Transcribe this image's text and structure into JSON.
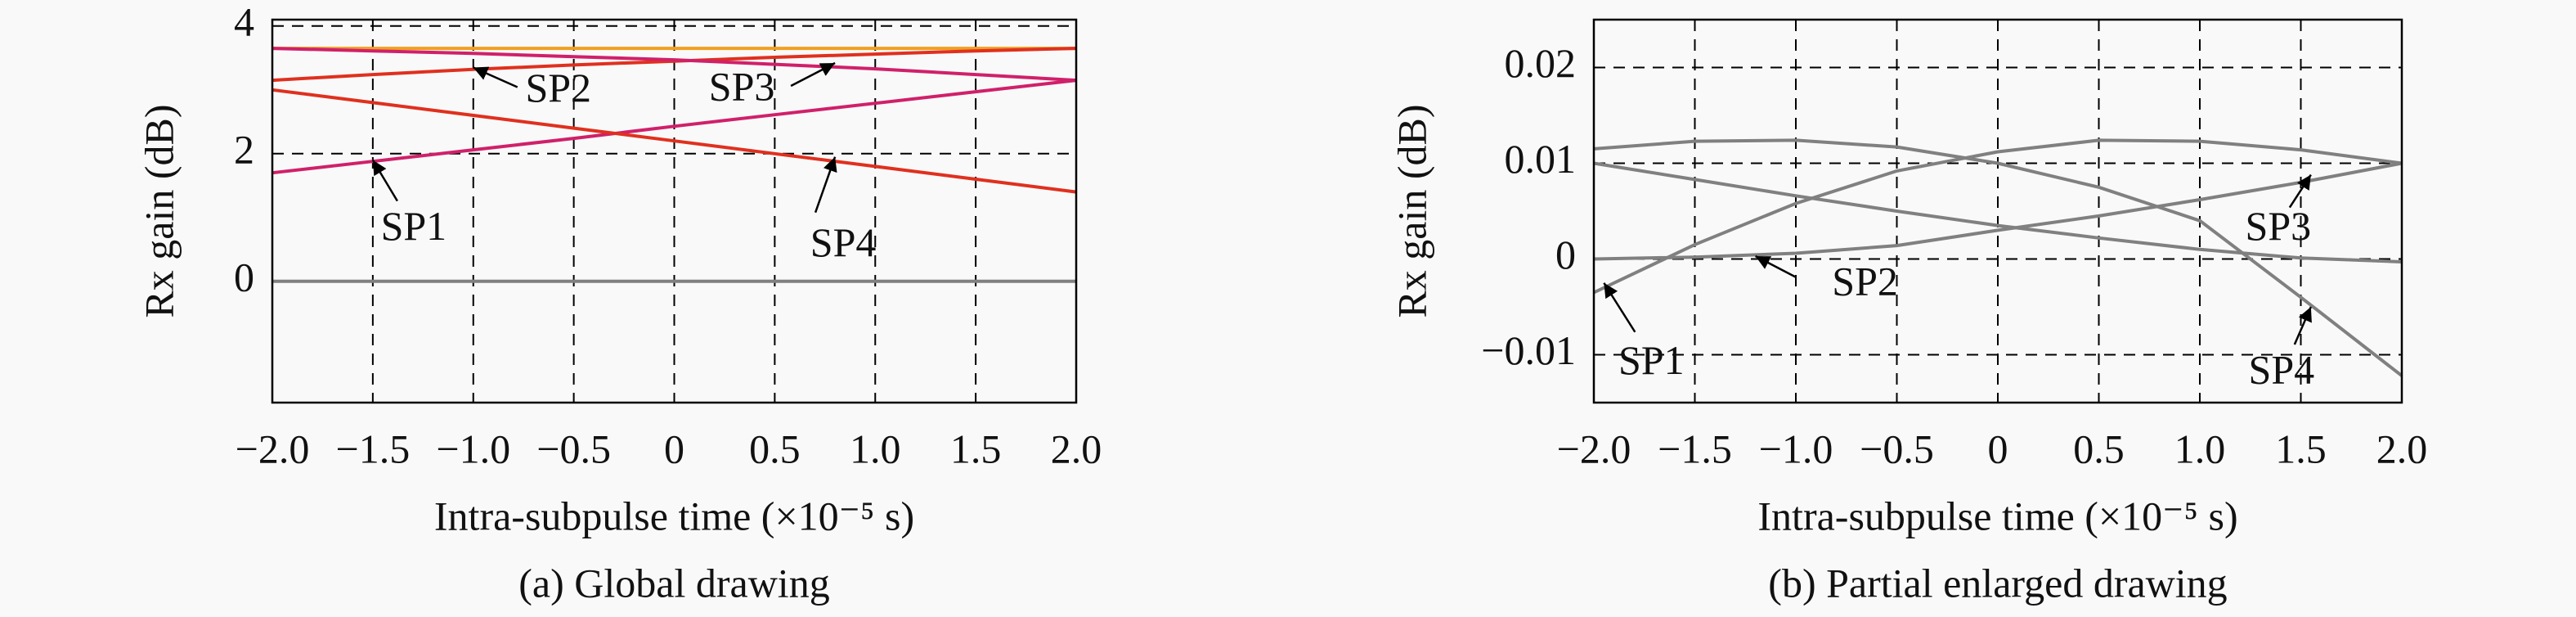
{
  "chart_data": [
    {
      "type": "line",
      "caption": "(a) Global drawing",
      "x_label": "Intra-subpulse time (×10⁻⁵ s)",
      "y_label": "Rx gain (dB)",
      "x": [
        -2,
        -1.5,
        -1,
        -0.5,
        0,
        0.5,
        1,
        1.5,
        2
      ],
      "xlim": [
        -2,
        2
      ],
      "xticks": [
        {
          "value": -2,
          "label": "−2.0"
        },
        {
          "value": -1.5,
          "label": "−1.5"
        },
        {
          "value": -1,
          "label": "−1.0"
        },
        {
          "value": -0.5,
          "label": "−0.5"
        },
        0,
        {
          "value": 0.5,
          "label": "0.5"
        },
        {
          "value": 1,
          "label": "1.0"
        },
        {
          "value": 1.5,
          "label": "1.5"
        },
        {
          "value": 2,
          "label": "2.0"
        }
      ],
      "ylim": [
        -1.9,
        4.1
      ],
      "yticks": [
        0,
        2,
        4
      ],
      "grid": true,
      "series": [
        {
          "color": "#f0a020",
          "values": [
            3.65,
            3.65,
            3.65,
            3.65,
            3.65,
            3.65,
            3.65,
            3.65,
            3.65
          ]
        },
        {
          "color": "#d0206a",
          "values": [
            1.7,
            1.88,
            2.06,
            2.24,
            2.43,
            2.61,
            2.79,
            2.97,
            3.15
          ]
        },
        {
          "color": "#e0301e",
          "values": [
            3.15,
            3.24,
            3.32,
            3.39,
            3.45,
            3.51,
            3.56,
            3.61,
            3.65
          ]
        },
        {
          "color": "#d0206a",
          "values": [
            3.65,
            3.61,
            3.57,
            3.52,
            3.47,
            3.4,
            3.33,
            3.24,
            3.15
          ]
        },
        {
          "color": "#e0301e",
          "values": [
            3.0,
            2.8,
            2.6,
            2.4,
            2.2,
            2.0,
            1.8,
            1.6,
            1.4
          ]
        },
        {
          "color": "#808080",
          "values": [
            0,
            0,
            0,
            0,
            0,
            0,
            0,
            0,
            0
          ]
        }
      ],
      "annotations": [
        {
          "text": "SP1",
          "x": -1.5,
          "y": 1.9
        },
        {
          "text": "SP2",
          "x": -1.0,
          "y": 3.35
        },
        {
          "text": "SP3",
          "x": 0.8,
          "y": 3.42
        },
        {
          "text": "SP4",
          "x": 0.8,
          "y": 1.95
        }
      ]
    },
    {
      "type": "line",
      "caption": "(b) Partial enlarged drawing",
      "x_label": "Intra-subpulse time (×10⁻⁵ s)",
      "y_label": "Rx gain (dB)",
      "x": [
        -2,
        -1.5,
        -1,
        -0.5,
        0,
        0.5,
        1,
        1.5,
        2
      ],
      "xlim": [
        -2,
        2
      ],
      "xticks": [
        {
          "value": -2,
          "label": "−2.0"
        },
        {
          "value": -1.5,
          "label": "−1.5"
        },
        {
          "value": -1,
          "label": "−1.0"
        },
        {
          "value": -0.5,
          "label": "−0.5"
        },
        0,
        {
          "value": 0.5,
          "label": "0.5"
        },
        {
          "value": 1,
          "label": "1.0"
        },
        {
          "value": 1.5,
          "label": "1.5"
        },
        {
          "value": 2,
          "label": "2.0"
        }
      ],
      "ylim": [
        -0.015,
        0.025
      ],
      "yticks": [
        {
          "value": -0.01,
          "label": "−0.01"
        },
        0,
        0.01,
        0.02
      ],
      "grid": true,
      "series": [
        {
          "color": "#808080",
          "values": [
            -0.0035,
            0.0015,
            0.0058,
            0.0092,
            0.0112,
            0.0124,
            0.0123,
            0.0114,
            0.01
          ]
        },
        {
          "color": "#808080",
          "values": [
            0,
            0.0002,
            0.0006,
            0.0014,
            0.003,
            0.0045,
            0.0062,
            0.008,
            0.01
          ]
        },
        {
          "color": "#808080",
          "values": [
            0.01,
            0.0083,
            0.0066,
            0.005,
            0.0035,
            0.0022,
            0.001,
            0.0001,
            -0.0003
          ]
        },
        {
          "color": "#808080",
          "values": [
            0.0115,
            0.0123,
            0.0124,
            0.0117,
            0.01,
            0.0075,
            0.004,
            -0.004,
            -0.0122
          ]
        }
      ],
      "annotations": [
        {
          "text": "SP1",
          "x": -1.95,
          "y": -0.0025
        },
        {
          "text": "SP2",
          "x": -1.2,
          "y": 0.0003
        },
        {
          "text": "SP3",
          "x": 1.55,
          "y": 0.0088
        },
        {
          "text": "SP4",
          "x": 1.55,
          "y": -0.005
        }
      ]
    }
  ]
}
